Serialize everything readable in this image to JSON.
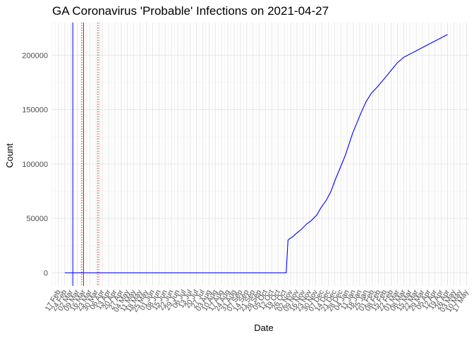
{
  "chart_data": {
    "type": "line",
    "title": "GA Coronavirus 'Probable' Infections on 2021-04-27",
    "xlabel": "Date",
    "ylabel": "Count",
    "x_type": "date",
    "xlim": [
      "2020-02-10",
      "2021-05-20"
    ],
    "ylim": [
      -12000,
      230000
    ],
    "grid": true,
    "legend": "none",
    "y_ticks": [
      0,
      50000,
      100000,
      150000,
      200000
    ],
    "y_tick_labels": [
      "0",
      "50000",
      "100000",
      "150000",
      "200000"
    ],
    "x_ticks": [
      {
        "date": "2020-02-17",
        "label": "17 Feb"
      },
      {
        "date": "2020-02-24",
        "label": "24 Feb"
      },
      {
        "date": "2020-03-02",
        "label": "02 Mar"
      },
      {
        "date": "2020-03-09",
        "label": "09 Mar"
      },
      {
        "date": "2020-03-16",
        "label": "16 Mar"
      },
      {
        "date": "2020-03-23",
        "label": "23 Mar"
      },
      {
        "date": "2020-03-30",
        "label": "30 Mar"
      },
      {
        "date": "2020-04-06",
        "label": "06 Apr"
      },
      {
        "date": "2020-04-13",
        "label": "13 Apr"
      },
      {
        "date": "2020-04-20",
        "label": "20 Apr"
      },
      {
        "date": "2020-04-27",
        "label": "27 Apr"
      },
      {
        "date": "2020-05-04",
        "label": "04 May"
      },
      {
        "date": "2020-05-11",
        "label": "11 May"
      },
      {
        "date": "2020-05-18",
        "label": "18 May"
      },
      {
        "date": "2020-05-25",
        "label": "25 May"
      },
      {
        "date": "2020-06-01",
        "label": "01 Jun"
      },
      {
        "date": "2020-06-08",
        "label": "08 Jun"
      },
      {
        "date": "2020-06-15",
        "label": "15 Jun"
      },
      {
        "date": "2020-06-22",
        "label": "22 Jun"
      },
      {
        "date": "2020-06-29",
        "label": "29 Jun"
      },
      {
        "date": "2020-07-06",
        "label": "06 Jul"
      },
      {
        "date": "2020-07-13",
        "label": "13 Jul"
      },
      {
        "date": "2020-07-20",
        "label": "20 Jul"
      },
      {
        "date": "2020-07-27",
        "label": "27 Jul"
      },
      {
        "date": "2020-08-03",
        "label": "03 Aug"
      },
      {
        "date": "2020-08-10",
        "label": "10 Aug"
      },
      {
        "date": "2020-08-17",
        "label": "17 Aug"
      },
      {
        "date": "2020-08-24",
        "label": "24 Aug"
      },
      {
        "date": "2020-08-31",
        "label": "31 Aug"
      },
      {
        "date": "2020-09-07",
        "label": "07 Sep"
      },
      {
        "date": "2020-09-14",
        "label": "14 Sep"
      },
      {
        "date": "2020-09-21",
        "label": "21 Sep"
      },
      {
        "date": "2020-09-28",
        "label": "28 Sep"
      },
      {
        "date": "2020-10-05",
        "label": "05 Oct"
      },
      {
        "date": "2020-10-12",
        "label": "12 Oct"
      },
      {
        "date": "2020-10-19",
        "label": "19 Oct"
      },
      {
        "date": "2020-10-26",
        "label": "26 Oct"
      },
      {
        "date": "2020-11-02",
        "label": "02 Nov"
      },
      {
        "date": "2020-11-09",
        "label": "09 Nov"
      },
      {
        "date": "2020-11-16",
        "label": "16 Nov"
      },
      {
        "date": "2020-11-23",
        "label": "23 Nov"
      },
      {
        "date": "2020-11-30",
        "label": "30 Nov"
      },
      {
        "date": "2020-12-07",
        "label": "07 Dec"
      },
      {
        "date": "2020-12-14",
        "label": "14 Dec"
      },
      {
        "date": "2020-12-21",
        "label": "21 Dec"
      },
      {
        "date": "2020-12-28",
        "label": "28 Dec"
      },
      {
        "date": "2021-01-04",
        "label": "04 Jan"
      },
      {
        "date": "2021-01-11",
        "label": "11 Jan"
      },
      {
        "date": "2021-01-18",
        "label": "18 Jan"
      },
      {
        "date": "2021-01-25",
        "label": "25 Jan"
      },
      {
        "date": "2021-02-01",
        "label": "01 Feb"
      },
      {
        "date": "2021-02-08",
        "label": "08 Feb"
      },
      {
        "date": "2021-02-15",
        "label": "15 Feb"
      },
      {
        "date": "2021-02-22",
        "label": "22 Feb"
      },
      {
        "date": "2021-03-01",
        "label": "01 Mar"
      },
      {
        "date": "2021-03-08",
        "label": "08 Mar"
      },
      {
        "date": "2021-03-15",
        "label": "15 Mar"
      },
      {
        "date": "2021-03-22",
        "label": "22 Mar"
      },
      {
        "date": "2021-03-29",
        "label": "29 Mar"
      },
      {
        "date": "2021-04-05",
        "label": "05 Apr"
      },
      {
        "date": "2021-04-12",
        "label": "12 Apr"
      },
      {
        "date": "2021-04-19",
        "label": "19 Apr"
      },
      {
        "date": "2021-04-26",
        "label": "26 Apr"
      },
      {
        "date": "2021-05-03",
        "label": "03 May"
      },
      {
        "date": "2021-05-10",
        "label": "10 May"
      },
      {
        "date": "2021-05-17",
        "label": "17 May"
      }
    ],
    "series": [
      {
        "color": "#0000ff",
        "points": [
          [
            "2020-02-24",
            0
          ],
          [
            "2020-10-28",
            0
          ],
          [
            "2020-10-30",
            30000
          ],
          [
            "2020-11-01",
            31500
          ],
          [
            "2020-11-04",
            33000
          ],
          [
            "2020-11-08",
            36000
          ],
          [
            "2020-11-14",
            40000
          ],
          [
            "2020-11-20",
            45000
          ],
          [
            "2020-11-25",
            48000
          ],
          [
            "2020-12-01",
            53000
          ],
          [
            "2020-12-06",
            60000
          ],
          [
            "2020-12-12",
            67000
          ],
          [
            "2020-12-17",
            75000
          ],
          [
            "2020-12-22",
            86000
          ],
          [
            "2020-12-28",
            98000
          ],
          [
            "2021-01-02",
            108000
          ],
          [
            "2021-01-06",
            118000
          ],
          [
            "2021-01-10",
            128000
          ],
          [
            "2021-01-15",
            138000
          ],
          [
            "2021-01-20",
            148000
          ],
          [
            "2021-01-25",
            157000
          ],
          [
            "2021-01-31",
            165000
          ],
          [
            "2021-02-08",
            172000
          ],
          [
            "2021-02-16",
            180000
          ],
          [
            "2021-02-24",
            188000
          ],
          [
            "2021-03-01",
            193000
          ],
          [
            "2021-03-08",
            198000
          ],
          [
            "2021-03-15",
            201000
          ],
          [
            "2021-03-22",
            204000
          ],
          [
            "2021-03-29",
            207000
          ],
          [
            "2021-04-05",
            210000
          ],
          [
            "2021-04-12",
            213000
          ],
          [
            "2021-04-19",
            216000
          ],
          [
            "2021-04-26",
            219000
          ]
        ]
      }
    ],
    "vertical_lines": [
      {
        "date": "2020-03-04",
        "color": "#0000ff",
        "style": "solid"
      },
      {
        "date": "2020-03-14",
        "color": "#cc0000",
        "style": "dotted"
      },
      {
        "date": "2020-03-16",
        "color": "#ff0000",
        "style": "solid"
      },
      {
        "date": "2020-04-01",
        "color": "#cc0000",
        "style": "dotted"
      },
      {
        "date": "2020-04-03",
        "color": "#ff9999",
        "style": "dotted"
      }
    ]
  }
}
